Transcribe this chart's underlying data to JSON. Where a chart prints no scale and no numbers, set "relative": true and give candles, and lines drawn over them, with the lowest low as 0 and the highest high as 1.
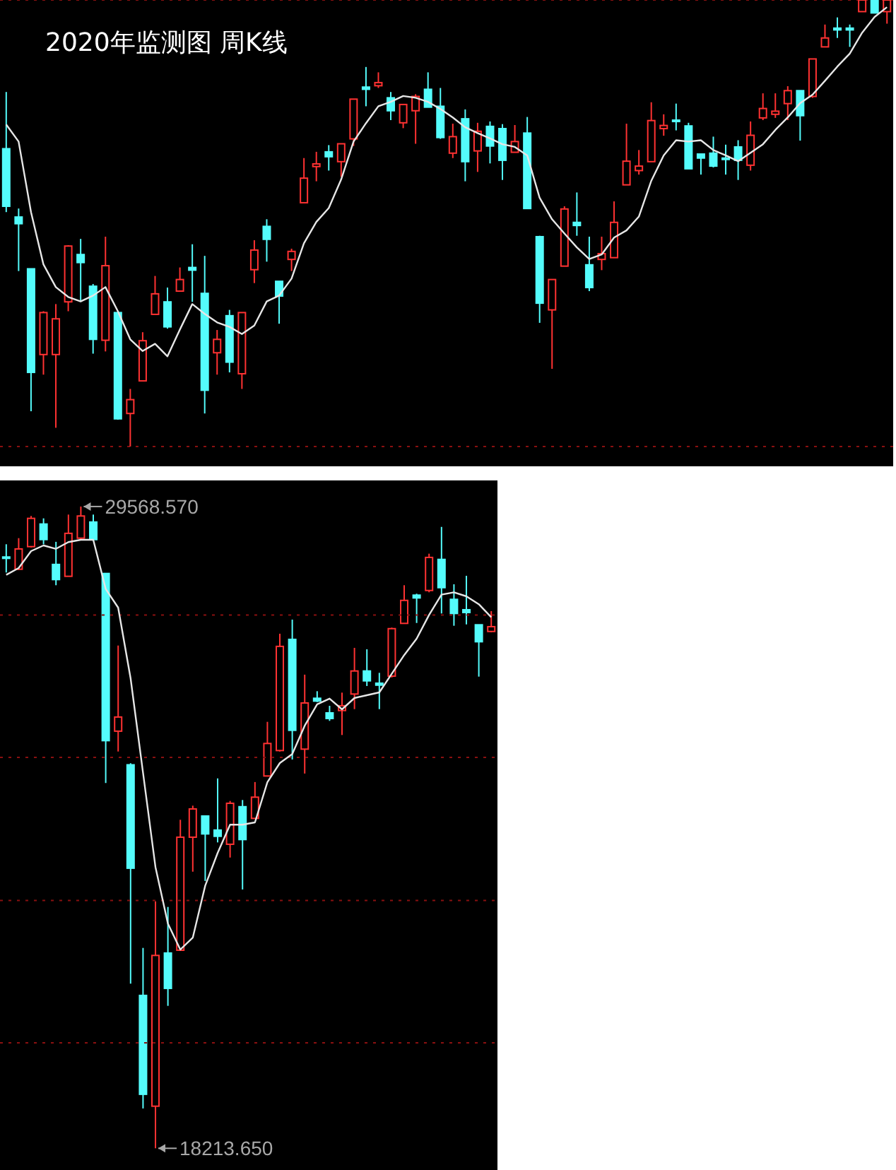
{
  "chart_data": [
    {
      "type": "candlestick",
      "title": "2020年监测图 周K线",
      "relative": true,
      "grid": "y",
      "tick_labels": false,
      "categories": [
        null,
        null,
        null,
        null,
        null,
        null,
        null,
        null,
        null,
        null,
        null,
        null,
        null,
        null,
        null,
        null,
        null,
        null,
        null,
        null,
        null,
        null,
        null,
        null,
        null,
        null,
        null,
        null,
        null,
        null,
        null,
        null,
        null,
        null,
        null,
        null,
        null,
        null,
        null,
        null,
        null,
        null,
        null,
        null,
        null,
        null,
        null,
        null,
        null,
        null,
        null,
        null,
        null,
        null,
        null,
        null,
        null,
        null,
        null,
        null,
        null,
        null,
        null,
        null,
        null,
        null,
        null,
        null,
        null,
        null,
        null,
        null
      ],
      "ohlc": [
        [
          0.667,
          0.794,
          0.525,
          0.538
        ],
        [
          0.514,
          0.533,
          0.393,
          0.499
        ],
        [
          0.398,
          0.398,
          0.079,
          0.166
        ],
        [
          0.206,
          0.303,
          0.161,
          0.3
        ],
        [
          0.206,
          0.319,
          0.042,
          0.286
        ],
        [
          0.324,
          0.451,
          0.303,
          0.449
        ],
        [
          0.43,
          0.465,
          0.324,
          0.412
        ],
        [
          0.359,
          0.364,
          0.208,
          0.24
        ],
        [
          0.238,
          0.47,
          0.213,
          0.405
        ],
        [
          0.3,
          0.3,
          0.06,
          0.062
        ],
        [
          0.074,
          0.129,
          0,
          0.105
        ],
        [
          0.147,
          0.256,
          0.147,
          0.237
        ],
        [
          0.296,
          0.382,
          0.296,
          0.342
        ],
        [
          0.324,
          0.356,
          0.264,
          0.268
        ],
        [
          0.348,
          0.401,
          0.348,
          0.374
        ],
        [
          0.401,
          0.453,
          0.324,
          0.395
        ],
        [
          0.343,
          0.427,
          0.074,
          0.126
        ],
        [
          0.21,
          0.261,
          0.161,
          0.24
        ],
        [
          0.293,
          0.306,
          0.166,
          0.189
        ],
        [
          0.163,
          0.3,
          0.129,
          0.3
        ],
        [
          0.396,
          0.462,
          0.366,
          0.44
        ],
        [
          0.493,
          0.509,
          0.414,
          0.464
        ],
        [
          0.37,
          0.37,
          0.275,
          0.337
        ],
        [
          0.419,
          0.443,
          0.393,
          0.437
        ],
        [
          0.546,
          0.646,
          0.546,
          0.601
        ],
        [
          0.627,
          0.66,
          0.594,
          0.633
        ],
        [
          0.66,
          0.675,
          0.618,
          0.649
        ],
        [
          0.638,
          0.678,
          0.604,
          0.678
        ],
        [
          0.689,
          0.778,
          0.673,
          0.778
        ],
        [
          0.805,
          0.85,
          0.762,
          0.8
        ],
        [
          0.808,
          0.838,
          0.803,
          0.815
        ],
        [
          0.781,
          0.794,
          0.731,
          0.752
        ],
        [
          0.725,
          0.766,
          0.713,
          0.766
        ],
        [
          0.752,
          0.789,
          0.678,
          0.784
        ],
        [
          0.8,
          0.838,
          0.76,
          0.76
        ],
        [
          0.762,
          0.803,
          0.689,
          0.692
        ],
        [
          0.657,
          0.723,
          0.646,
          0.694
        ],
        [
          0.734,
          0.755,
          0.594,
          0.638
        ],
        [
          0.662,
          0.725,
          0.615,
          0.706
        ],
        [
          0.717,
          0.728,
          0.634,
          0.673
        ],
        [
          0.712,
          0.722,
          0.597,
          0.641
        ],
        [
          0.659,
          0.72,
          0.659,
          0.683
        ],
        [
          0.702,
          0.738,
          0.533,
          0.533
        ],
        [
          0.47,
          0.472,
          0.277,
          0.321
        ],
        [
          0.306,
          0.374,
          0.174,
          0.374
        ],
        [
          0.404,
          0.538,
          0.404,
          0.532
        ],
        [
          0.502,
          0.569,
          0.472,
          0.495
        ],
        [
          0.407,
          0.47,
          0.348,
          0.356
        ],
        [
          0.419,
          0.47,
          0.395,
          0.432
        ],
        [
          0.423,
          0.549,
          0.423,
          0.502
        ],
        [
          0.586,
          0.723,
          0.586,
          0.639
        ],
        [
          0.618,
          0.664,
          0.609,
          0.628
        ],
        [
          0.638,
          0.771,
          0.638,
          0.73
        ],
        [
          0.712,
          0.744,
          0.696,
          0.719
        ],
        [
          0.731,
          0.768,
          0.708,
          0.728
        ],
        [
          0.718,
          0.725,
          0.622,
          0.622
        ],
        [
          0.655,
          0.655,
          0.609,
          0.646
        ],
        [
          0.657,
          0.694,
          0.625,
          0.628
        ],
        [
          0.646,
          0.676,
          0.609,
          0.643
        ],
        [
          0.671,
          0.686,
          0.597,
          0.641
        ],
        [
          0.63,
          0.728,
          0.618,
          0.697
        ],
        [
          0.736,
          0.791,
          0.731,
          0.757
        ],
        [
          0.744,
          0.791,
          0.736,
          0.751
        ],
        [
          0.768,
          0.807,
          0.731,
          0.797
        ],
        [
          0.797,
          0.797,
          0.685,
          0.741
        ],
        [
          0.784,
          0.868,
          0.781,
          0.868
        ],
        [
          0.895,
          0.945,
          0.895,
          0.915
        ],
        [
          0.937,
          0.961,
          0.915,
          0.933
        ],
        [
          0.937,
          0.945,
          0.895,
          0.933
        ],
        [
          0.974,
          1,
          0.974,
          1
        ],
        [
          1,
          1,
          0.971,
          0.971
        ],
        [
          0.974,
          1,
          0.947,
          1
        ]
      ],
      "colors": [
        "#54fcfc",
        "#54fcfc",
        "#54fcfc",
        "#ff3232",
        "#ff3232",
        "#ff3232",
        "#54fcfc",
        "#54fcfc",
        "#ff3232",
        "#54fcfc",
        "#ff3232",
        "#ff3232",
        "#ff3232",
        "#54fcfc",
        "#ff3232",
        "#54fcfc",
        "#54fcfc",
        "#ff3232",
        "#54fcfc",
        "#ff3232",
        "#ff3232",
        "#54fcfc",
        "#54fcfc",
        "#ff3232",
        "#ff3232",
        "#ff3232",
        "#54fcfc",
        "#ff3232",
        "#ff3232",
        "#54fcfc",
        "#ff3232",
        "#54fcfc",
        "#ff3232",
        "#ff3232",
        "#54fcfc",
        "#54fcfc",
        "#ff3232",
        "#54fcfc",
        "#ff3232",
        "#54fcfc",
        "#54fcfc",
        "#ff3232",
        "#54fcfc",
        "#54fcfc",
        "#ff3232",
        "#ff3232",
        "#54fcfc",
        "#54fcfc",
        "#ff3232",
        "#ff3232",
        "#ff3232",
        "#ff3232",
        "#ff3232",
        "#ff3232",
        "#54fcfc",
        "#54fcfc",
        "#54fcfc",
        "#54fcfc",
        "#54fcfc",
        "#54fcfc",
        "#ff3232",
        "#ff3232",
        "#ff3232",
        "#ff3232",
        "#54fcfc",
        "#ff3232",
        "#ff3232",
        "#54fcfc",
        "#54fcfc",
        "#ff3232",
        "#54fcfc",
        "#ff3232"
      ],
      "series": [
        {
          "type": "line",
          "color": "#e6e6e6",
          "values": [
            0.721,
            0.683,
            0.525,
            0.408,
            0.357,
            0.335,
            0.325,
            0.338,
            0.357,
            0.303,
            0.24,
            0.214,
            0.23,
            0.202,
            0.262,
            0.319,
            0.297,
            0.278,
            0.268,
            0.252,
            0.271,
            0.325,
            0.338,
            0.376,
            0.455,
            0.503,
            0.534,
            0.598,
            0.683,
            0.724,
            0.762,
            0.772,
            0.785,
            0.781,
            0.772,
            0.756,
            0.737,
            0.715,
            0.702,
            0.69,
            0.677,
            0.671,
            0.652,
            0.557,
            0.509,
            0.477,
            0.446,
            0.42,
            0.43,
            0.468,
            0.484,
            0.515,
            0.595,
            0.652,
            0.686,
            0.683,
            0.686,
            0.664,
            0.652,
            0.639,
            0.658,
            0.677,
            0.709,
            0.737,
            0.769,
            0.788,
            0.819,
            0.851,
            0.88,
            0.927,
            0.962,
            0.984
          ]
        }
      ]
    },
    {
      "type": "candlestick",
      "grid": "y",
      "tick_labels": false,
      "ylim": [
        17830,
        30030
      ],
      "yticks": [
        {
          "value": 27650,
          "label": null
        },
        {
          "value": 25130,
          "label": null
        },
        {
          "value": 22600,
          "label": null
        },
        {
          "value": 20080,
          "label": null
        }
      ],
      "categories": [
        null,
        null,
        null,
        null,
        null,
        null,
        null,
        null,
        null,
        null,
        null,
        null,
        null,
        null,
        null,
        null,
        null,
        null,
        null,
        null,
        null,
        null,
        null,
        null,
        null,
        null,
        null,
        null,
        null,
        null,
        null,
        null,
        null,
        null,
        null,
        null,
        null,
        null,
        null,
        null
      ],
      "ohlc": [
        [
          28676,
          28901,
          28401,
          28651
        ],
        [
          28459,
          29009,
          28444,
          28818
        ],
        [
          28859,
          29401,
          28844,
          29359
        ],
        [
          29259,
          29359,
          28901,
          28984
        ],
        [
          28544,
          28944,
          28176,
          28276
        ],
        [
          28334,
          29426,
          28334,
          29094
        ],
        [
          29009,
          29568.57,
          28984,
          29401
        ],
        [
          29294,
          29426,
          28959,
          28984
        ],
        [
          28384,
          28384,
          24676,
          25426
        ],
        [
          25594,
          27109,
          25234,
          25844
        ],
        [
          24999,
          25026,
          21126,
          23169
        ],
        [
          20919,
          21759,
          18919,
          19169
        ],
        [
          18959,
          22584,
          18213.65,
          21626
        ],
        [
          21669,
          22484,
          20734,
          21043
        ],
        [
          21718,
          24026,
          21718,
          23718
        ],
        [
          23718,
          24276,
          23108,
          24218
        ],
        [
          24093,
          24093,
          22943,
          23776
        ],
        [
          23844,
          24758,
          23626,
          23734
        ],
        [
          23593,
          24359,
          23358,
          24318
        ],
        [
          24258,
          24376,
          22793,
          23676
        ],
        [
          24051,
          24694,
          24051,
          24426
        ],
        [
          24801,
          25759,
          24801,
          25376
        ],
        [
          25251,
          27318,
          25234,
          27094
        ],
        [
          27218,
          27568,
          25093,
          25609
        ],
        [
          25276,
          26594,
          24844,
          26093
        ],
        [
          26176,
          26301,
          26108,
          26126
        ],
        [
          25918,
          26043,
          25776,
          25818
        ],
        [
          25959,
          26276,
          25526,
          26044
        ],
        [
          26251,
          27068,
          25984,
          26659
        ],
        [
          26659,
          27043,
          26393,
          26484
        ],
        [
          26443,
          26626,
          25984,
          26408
        ],
        [
          26568,
          27426,
          26543,
          27408
        ],
        [
          27501,
          28176,
          27501,
          27908
        ],
        [
          28001,
          28026,
          27508,
          27951
        ],
        [
          28083,
          28734,
          28051,
          28668
        ],
        [
          28633,
          29208,
          27676,
          28133
        ],
        [
          27926,
          28193,
          27459,
          27676
        ],
        [
          27743,
          28343,
          27483,
          27693
        ],
        [
          27476,
          27476,
          26559,
          27176
        ],
        [
          27358,
          27718,
          27343,
          27443
        ]
      ],
      "colors": [
        "#54fcfc",
        "#ff3232",
        "#ff3232",
        "#54fcfc",
        "#54fcfc",
        "#ff3232",
        "#ff3232",
        "#54fcfc",
        "#54fcfc",
        "#ff3232",
        "#54fcfc",
        "#54fcfc",
        "#ff3232",
        "#54fcfc",
        "#ff3232",
        "#ff3232",
        "#54fcfc",
        "#54fcfc",
        "#ff3232",
        "#54fcfc",
        "#ff3232",
        "#ff3232",
        "#ff3232",
        "#54fcfc",
        "#ff3232",
        "#54fcfc",
        "#54fcfc",
        "#ff3232",
        "#ff3232",
        "#54fcfc",
        "#54fcfc",
        "#ff3232",
        "#ff3232",
        "#54fcfc",
        "#ff3232",
        "#54fcfc",
        "#54fcfc",
        "#54fcfc",
        "#54fcfc",
        "#ff3232"
      ],
      "series": [
        {
          "type": "line",
          "color": "#e6e6e6",
          "values": [
            28360,
            28480,
            28780,
            28880,
            28820,
            28940,
            28980,
            28980,
            28110,
            27780,
            26530,
            24860,
            23190,
            22190,
            21730,
            21940,
            22860,
            23440,
            23940,
            23940,
            23980,
            24690,
            25030,
            25190,
            25690,
            26070,
            26170,
            25980,
            26180,
            26230,
            26280,
            26610,
            26940,
            27230,
            27650,
            28010,
            28050,
            27980,
            27840,
            27610
          ]
        }
      ],
      "annotations": [
        "29568.570",
        "18213.650"
      ]
    }
  ]
}
